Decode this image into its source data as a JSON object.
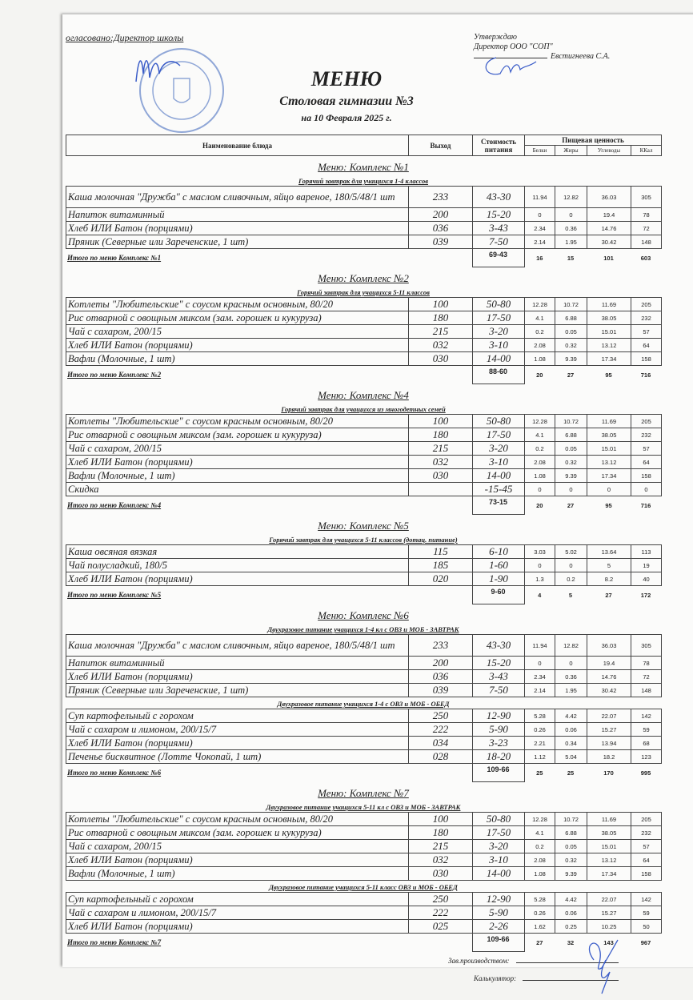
{
  "header": {
    "agreed": "огласовано:Директор школы",
    "approve_line1": "Утверждаю",
    "approve_line2": "Директор ООО \"СОП\"",
    "approve_name": "Евстигнеева С.А.",
    "title": "МЕНЮ",
    "subtitle": "Столовая гимназии №3",
    "date": "на 10 Февраля 2025 г."
  },
  "columns": {
    "name": "Наименование блюда",
    "yield": "Выход",
    "cost": "Стоимость питания",
    "nutrition": "Пищевая ценность",
    "protein": "Белки",
    "fat": "Жиры",
    "carbs": "Углеводы",
    "kcal": "ККал"
  },
  "colors": {
    "ink": "#222222",
    "stamp": "#4a6fc0",
    "signature": "#3a5cc8"
  },
  "complexes": [
    {
      "title": "Меню: Комплекс №1",
      "groups": [
        {
          "subtitle": "Горячий завтрак для учащихся 1-4 классов",
          "rows": [
            {
              "name": "Каша молочная \"Дружба\" с маслом сливочным, яйцо вареное, 180/5/48/1 шт",
              "yield": "233",
              "cost": "43-30",
              "protein": "11.94",
              "fat": "12.82",
              "carbs": "36.03",
              "kcal": "305"
            },
            {
              "name": "Напиток витаминный",
              "yield": "200",
              "cost": "15-20",
              "protein": "0",
              "fat": "0",
              "carbs": "19.4",
              "kcal": "78"
            },
            {
              "name": "Хлеб ИЛИ Батон (порциями)",
              "yield": "036",
              "cost": "3-43",
              "protein": "2.34",
              "fat": "0.36",
              "carbs": "14.76",
              "kcal": "72"
            },
            {
              "name": "Пряник (Северные или Зареченские, 1 шт)",
              "yield": "039",
              "cost": "7-50",
              "protein": "2.14",
              "fat": "1.95",
              "carbs": "30.42",
              "kcal": "148"
            }
          ]
        }
      ],
      "total": {
        "label": "Итого по меню Комплекс №1",
        "cost": "69-43",
        "protein": "16",
        "fat": "15",
        "carbs": "101",
        "kcal": "603"
      }
    },
    {
      "title": "Меню: Комплекс №2",
      "groups": [
        {
          "subtitle": "Горячий завтрак для учащихся 5-11 классов",
          "rows": [
            {
              "name": "Котлеты  \"Любительские\" с соусом красным основным, 80/20",
              "yield": "100",
              "cost": "50-80",
              "protein": "12.28",
              "fat": "10.72",
              "carbs": "11.69",
              "kcal": "205"
            },
            {
              "name": "Рис отварной с овощным миксом (зам. горошек и кукуруза)",
              "yield": "180",
              "cost": "17-50",
              "protein": "4.1",
              "fat": "6.88",
              "carbs": "38.05",
              "kcal": "232"
            },
            {
              "name": "Чай с сахаром, 200/15",
              "yield": "215",
              "cost": "3-20",
              "protein": "0.2",
              "fat": "0.05",
              "carbs": "15.01",
              "kcal": "57"
            },
            {
              "name": "Хлеб ИЛИ Батон (порциями)",
              "yield": "032",
              "cost": "3-10",
              "protein": "2.08",
              "fat": "0.32",
              "carbs": "13.12",
              "kcal": "64"
            },
            {
              "name": "Вафли (Молочные, 1 шт)",
              "yield": "030",
              "cost": "14-00",
              "protein": "1.08",
              "fat": "9.39",
              "carbs": "17.34",
              "kcal": "158"
            }
          ]
        }
      ],
      "total": {
        "label": "Итого по меню Комплекс №2",
        "cost": "88-60",
        "protein": "20",
        "fat": "27",
        "carbs": "95",
        "kcal": "716"
      }
    },
    {
      "title": "Меню: Комплекс №4",
      "groups": [
        {
          "subtitle": "Горячий завтрак для учащихся из многодетных семей",
          "rows": [
            {
              "name": "Котлеты  \"Любительские\" с соусом красным основным, 80/20",
              "yield": "100",
              "cost": "50-80",
              "protein": "12.28",
              "fat": "10.72",
              "carbs": "11.69",
              "kcal": "205"
            },
            {
              "name": "Рис отварной с овощным миксом (зам. горошек и кукуруза)",
              "yield": "180",
              "cost": "17-50",
              "protein": "4.1",
              "fat": "6.88",
              "carbs": "38.05",
              "kcal": "232"
            },
            {
              "name": "Чай с сахаром, 200/15",
              "yield": "215",
              "cost": "3-20",
              "protein": "0.2",
              "fat": "0.05",
              "carbs": "15.01",
              "kcal": "57"
            },
            {
              "name": "Хлеб ИЛИ Батон (порциями)",
              "yield": "032",
              "cost": "3-10",
              "protein": "2.08",
              "fat": "0.32",
              "carbs": "13.12",
              "kcal": "64"
            },
            {
              "name": "Вафли (Молочные, 1 шт)",
              "yield": "030",
              "cost": "14-00",
              "protein": "1.08",
              "fat": "9.39",
              "carbs": "17.34",
              "kcal": "158"
            },
            {
              "name": "Скидка",
              "yield": "",
              "cost": "-15-45",
              "protein": "0",
              "fat": "0",
              "carbs": "0",
              "kcal": "0"
            }
          ]
        }
      ],
      "total": {
        "label": "Итого по меню Комплекс №4",
        "cost": "73-15",
        "protein": "20",
        "fat": "27",
        "carbs": "95",
        "kcal": "716"
      }
    },
    {
      "title": "Меню: Комплекс №5",
      "groups": [
        {
          "subtitle": "Горячий завтрак для учащихся 5-11 классов (дотац. питание)",
          "rows": [
            {
              "name": "Каша овсяная вязкая",
              "yield": "115",
              "cost": "6-10",
              "protein": "3.03",
              "fat": "5.02",
              "carbs": "13.64",
              "kcal": "113"
            },
            {
              "name": "Чай полусладкий, 180/5",
              "yield": "185",
              "cost": "1-60",
              "protein": "0",
              "fat": "0",
              "carbs": "5",
              "kcal": "19"
            },
            {
              "name": "Хлеб ИЛИ Батон (порциями)",
              "yield": "020",
              "cost": "1-90",
              "protein": "1.3",
              "fat": "0.2",
              "carbs": "8.2",
              "kcal": "40"
            }
          ]
        }
      ],
      "total": {
        "label": "Итого по меню Комплекс №5",
        "cost": "9-60",
        "protein": "4",
        "fat": "5",
        "carbs": "27",
        "kcal": "172"
      }
    },
    {
      "title": "Меню: Комплекс №6",
      "groups": [
        {
          "subtitle": "Двухразовое питание учащихся 1-4 кл с ОВЗ и МОБ - ЗАВТРАК",
          "rows": [
            {
              "name": "Каша молочная \"Дружба\" с маслом сливочным, яйцо вареное, 180/5/48/1 шт",
              "yield": "233",
              "cost": "43-30",
              "protein": "11.94",
              "fat": "12.82",
              "carbs": "36.03",
              "kcal": "305"
            },
            {
              "name": "Напиток витаминный",
              "yield": "200",
              "cost": "15-20",
              "protein": "0",
              "fat": "0",
              "carbs": "19.4",
              "kcal": "78"
            },
            {
              "name": "Хлеб ИЛИ Батон (порциями)",
              "yield": "036",
              "cost": "3-43",
              "protein": "2.34",
              "fat": "0.36",
              "carbs": "14.76",
              "kcal": "72"
            },
            {
              "name": "Пряник (Северные или Зареченские, 1 шт)",
              "yield": "039",
              "cost": "7-50",
              "protein": "2.14",
              "fat": "1.95",
              "carbs": "30.42",
              "kcal": "148"
            }
          ]
        },
        {
          "subtitle": "Двухразовое питание учащихся 1-4 с ОВЗ и МОБ - ОБЕД",
          "rows": [
            {
              "name": "Суп картофельный с горохом",
              "yield": "250",
              "cost": "12-90",
              "protein": "5.28",
              "fat": "4.42",
              "carbs": "22.07",
              "kcal": "142"
            },
            {
              "name": "Чай с сахаром и лимоном, 200/15/7",
              "yield": "222",
              "cost": "5-90",
              "protein": "0.26",
              "fat": "0.06",
              "carbs": "15.27",
              "kcal": "59"
            },
            {
              "name": "Хлеб ИЛИ Батон (порциями)",
              "yield": "034",
              "cost": "3-23",
              "protein": "2.21",
              "fat": "0.34",
              "carbs": "13.94",
              "kcal": "68"
            },
            {
              "name": "Печенье бисквитное (Лотте Чокопай, 1 шт)",
              "yield": "028",
              "cost": "18-20",
              "protein": "1.12",
              "fat": "5.04",
              "carbs": "18.2",
              "kcal": "123"
            }
          ]
        }
      ],
      "total": {
        "label": "Итого по меню Комплекс №6",
        "cost": "109-66",
        "protein": "25",
        "fat": "25",
        "carbs": "170",
        "kcal": "995"
      }
    },
    {
      "title": "Меню: Комплекс №7",
      "groups": [
        {
          "subtitle": "Двухразовое питание учащихся 5-11 кл с  ОВЗ и МОБ - ЗАВТРАК",
          "rows": [
            {
              "name": "Котлеты  \"Любительские\" с соусом красным основным, 80/20",
              "yield": "100",
              "cost": "50-80",
              "protein": "12.28",
              "fat": "10.72",
              "carbs": "11.69",
              "kcal": "205"
            },
            {
              "name": "Рис отварной с овощным миксом (зам. горошек и кукуруза)",
              "yield": "180",
              "cost": "17-50",
              "protein": "4.1",
              "fat": "6.88",
              "carbs": "38.05",
              "kcal": "232"
            },
            {
              "name": "Чай с сахаром, 200/15",
              "yield": "215",
              "cost": "3-20",
              "protein": "0.2",
              "fat": "0.05",
              "carbs": "15.01",
              "kcal": "57"
            },
            {
              "name": "Хлеб ИЛИ Батон (порциями)",
              "yield": "032",
              "cost": "3-10",
              "protein": "2.08",
              "fat": "0.32",
              "carbs": "13.12",
              "kcal": "64"
            },
            {
              "name": "Вафли (Молочные, 1 шт)",
              "yield": "030",
              "cost": "14-00",
              "protein": "1.08",
              "fat": "9.39",
              "carbs": "17.34",
              "kcal": "158"
            }
          ]
        },
        {
          "subtitle": "Двухразовое питание учащихся 5-11 класс ОВЗ и МОБ - ОБЕД",
          "rows": [
            {
              "name": "Суп картофельный с горохом",
              "yield": "250",
              "cost": "12-90",
              "protein": "5.28",
              "fat": "4.42",
              "carbs": "22.07",
              "kcal": "142"
            },
            {
              "name": "Чай с сахаром и лимоном, 200/15/7",
              "yield": "222",
              "cost": "5-90",
              "protein": "0.26",
              "fat": "0.06",
              "carbs": "15.27",
              "kcal": "59"
            },
            {
              "name": "Хлеб ИЛИ Батон (порциями)",
              "yield": "025",
              "cost": "2-26",
              "protein": "1.62",
              "fat": "0.25",
              "carbs": "10.25",
              "kcal": "50"
            }
          ]
        }
      ],
      "total": {
        "label": "Итого по меню Комплекс №7",
        "cost": "109-66",
        "protein": "27",
        "fat": "32",
        "carbs": "143",
        "kcal": "967"
      }
    }
  ],
  "footer": {
    "production_head": "Зав.производством:",
    "calculator": "Калькулятор:"
  }
}
